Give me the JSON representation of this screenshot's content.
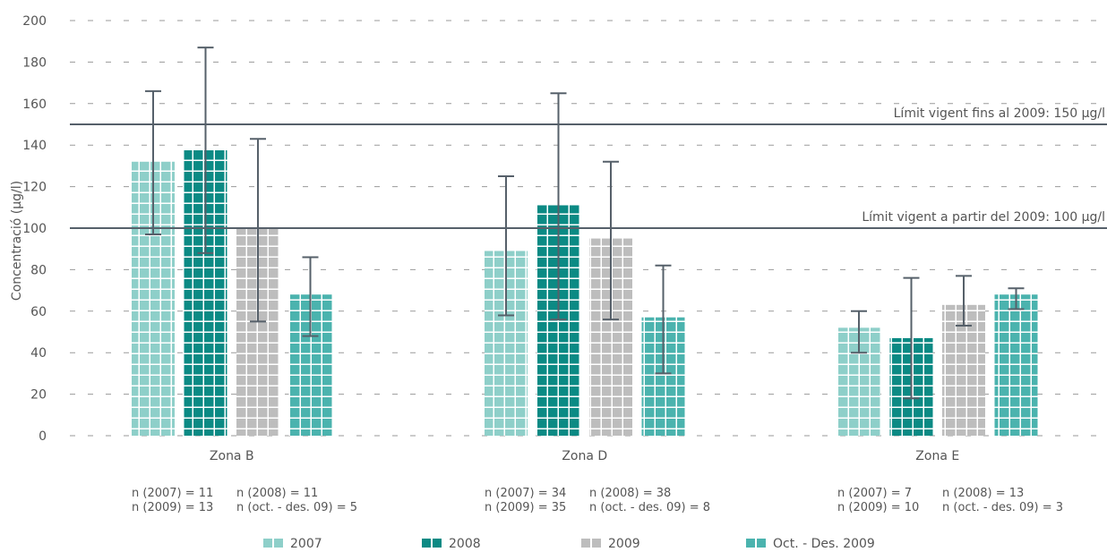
{
  "chart_data": {
    "type": "bar",
    "ylabel": "Concentració (µg/l)",
    "ylim": [
      0,
      200
    ],
    "yticks": [
      "0",
      "20",
      "40",
      "60",
      "80",
      "100",
      "120",
      "140",
      "160",
      "180",
      "200"
    ],
    "grid": "horizontal-dashed",
    "categories": [
      "Zona B",
      "Zona D",
      "Zona E"
    ],
    "series": [
      {
        "name": "2007",
        "color": "#8ecfc9",
        "values": [
          132,
          89,
          52
        ],
        "err_low": [
          97,
          58,
          40
        ],
        "err_high": [
          166,
          125,
          60
        ]
      },
      {
        "name": "2008",
        "color": "#0b8a84",
        "values": [
          138,
          111,
          47
        ],
        "err_low": [
          88,
          56,
          18
        ],
        "err_high": [
          187,
          165,
          76
        ]
      },
      {
        "name": "2009",
        "color": "#bdbdbd",
        "values": [
          100,
          95,
          63
        ],
        "err_low": [
          55,
          56,
          53
        ],
        "err_high": [
          143,
          132,
          77
        ]
      },
      {
        "name": "Oct. - Des. 2009",
        "color": "#4bb3ae",
        "values": [
          68,
          57,
          68
        ],
        "err_low": [
          48,
          30,
          61
        ],
        "err_high": [
          86,
          82,
          71
        ]
      }
    ],
    "reference_lines": [
      {
        "value": 150,
        "label": "Límit vigent fins al 2009: 150 µg/l"
      },
      {
        "value": 100,
        "label": "Límit vigent a partir del 2009: 100 µg/l"
      }
    ],
    "sample_sizes": [
      {
        "line1a": "n (2007) = 11",
        "line1b": "n (2008) = 11",
        "line2a": "n (2009) = 13",
        "line2b": "n (oct. - des. 09) = 5"
      },
      {
        "line1a": "n (2007) = 34",
        "line1b": "n (2008) = 38",
        "line2a": "n (2009) = 35",
        "line2b": "n (oct. - des. 09) = 8"
      },
      {
        "line1a": "n (2007) = 7",
        "line1b": "n (2008) = 13",
        "line2a": "n (2009) = 10",
        "line2b": "n (oct. - des. 09) = 3"
      }
    ],
    "legend_position": "bottom"
  }
}
